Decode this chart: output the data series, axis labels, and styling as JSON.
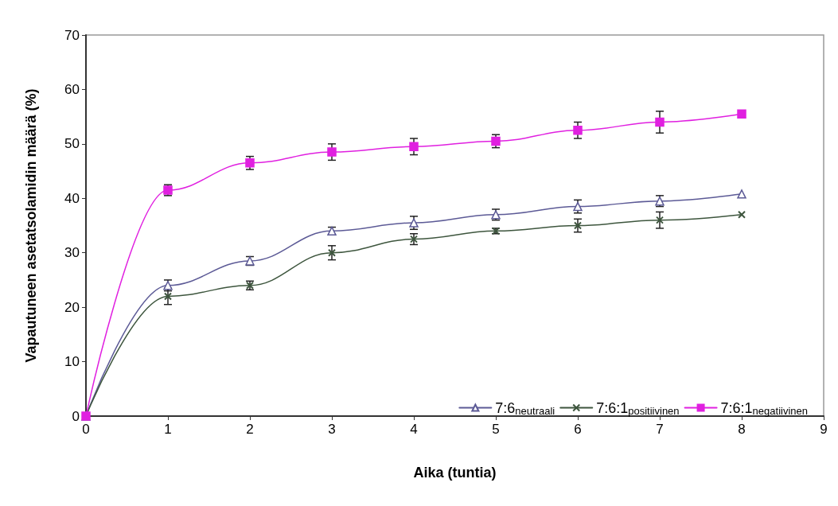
{
  "chart_data": {
    "type": "line",
    "xlabel": "Aika (tuntia)",
    "ylabel": "Vapautuneen asetatsolamidin määrä (%)",
    "x": [
      0,
      1,
      2,
      3,
      4,
      5,
      6,
      7,
      8
    ],
    "xlim": [
      0,
      9
    ],
    "xticks": [
      0,
      1,
      2,
      3,
      4,
      5,
      6,
      7,
      8,
      9
    ],
    "ylim": [
      0,
      70
    ],
    "yticks": [
      0,
      10,
      20,
      30,
      40,
      50,
      60,
      70
    ],
    "grid": false,
    "legend": "bottom right",
    "line_style": "solid",
    "series": [
      {
        "name": "7:6$_{neutraali}$",
        "color": "#5c5a96",
        "marker": "triangle",
        "values": [
          0,
          24,
          28.5,
          34,
          35.5,
          37,
          38.5,
          39.5,
          40.8
        ],
        "errors": [
          null,
          1,
          0.8,
          0.7,
          1.2,
          1,
          1.2,
          1,
          null
        ]
      },
      {
        "name": "7:6:1$_{positiivinen}$",
        "color": "#3d553d",
        "marker": "cross",
        "values": [
          0,
          22,
          24,
          30,
          32.5,
          34,
          35,
          36,
          37
        ],
        "errors": [
          null,
          1.5,
          0.8,
          1.3,
          1,
          0.5,
          1.2,
          1.5,
          null
        ]
      },
      {
        "name": "7:6:1$_{negatiivinen}$",
        "color": "#e020e0",
        "marker": "square",
        "values": [
          0,
          41.5,
          46.5,
          48.5,
          49.5,
          50.5,
          52.5,
          54,
          55.5
        ],
        "errors": [
          null,
          1,
          1.2,
          1.5,
          1.5,
          1.2,
          1.5,
          2,
          null
        ]
      }
    ]
  }
}
